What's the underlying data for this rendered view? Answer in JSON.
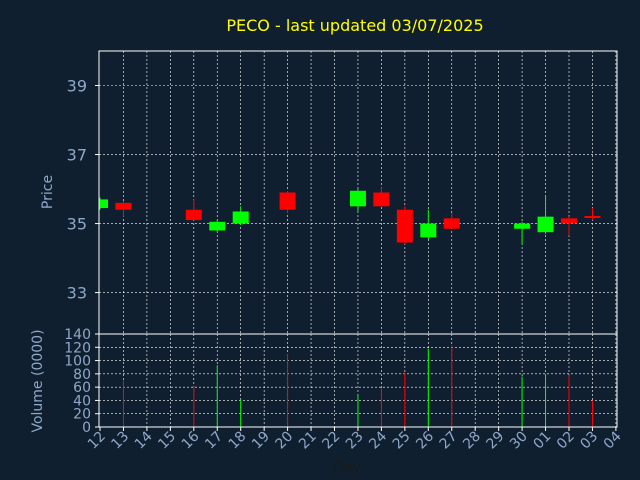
{
  "colors": {
    "background": "#0f1f2f",
    "up": "#00ff00",
    "down": "#ff0000",
    "grid": "#ffffff",
    "frame": "#ffffff",
    "title": "#ffff00",
    "label": "#8fa8c8"
  },
  "chart_data": {
    "type": "candlestick",
    "title": "PECO - last updated 03/07/2025",
    "xlabel": "Day",
    "price_panel": {
      "ylabel": "Price",
      "yticks": [
        "33",
        "35",
        "37",
        "39"
      ],
      "ylim": [
        31.8,
        40.0
      ]
    },
    "volume_panel": {
      "ylabel": "Volume (0000)",
      "yticks": [
        "0",
        "20",
        "40",
        "60",
        "80",
        "100",
        "120",
        "140"
      ],
      "ylim": [
        0,
        140
      ]
    },
    "xticks": [
      "12",
      "13",
      "14",
      "15",
      "16",
      "17",
      "18",
      "19",
      "20",
      "21",
      "22",
      "23",
      "24",
      "25",
      "26",
      "27",
      "28",
      "29",
      "30",
      "01",
      "02",
      "03",
      "04"
    ],
    "grid": true,
    "series": [
      {
        "x": "12",
        "open": 35.45,
        "high": 35.75,
        "low": 35.4,
        "close": 35.7,
        "volume": 0
      },
      {
        "x": "13",
        "open": 35.6,
        "high": 35.65,
        "low": 35.2,
        "close": 35.4,
        "volume": 70
      },
      {
        "x": "16",
        "open": 35.4,
        "high": 35.7,
        "low": 35.1,
        "close": 35.1,
        "volume": 61
      },
      {
        "x": "17",
        "open": 34.8,
        "high": 35.1,
        "low": 34.75,
        "close": 35.05,
        "volume": 93
      },
      {
        "x": "18",
        "open": 35.0,
        "high": 35.5,
        "low": 34.95,
        "close": 35.35,
        "volume": 42
      },
      {
        "x": "20",
        "open": 35.9,
        "high": 35.95,
        "low": 35.3,
        "close": 35.4,
        "volume": 110
      },
      {
        "x": "23",
        "open": 35.5,
        "high": 36.0,
        "low": 35.35,
        "close": 35.95,
        "volume": 47
      },
      {
        "x": "24",
        "open": 35.9,
        "high": 36.05,
        "low": 35.5,
        "close": 35.5,
        "volume": 58
      },
      {
        "x": "25",
        "open": 35.4,
        "high": 35.5,
        "low": 34.4,
        "close": 34.45,
        "volume": 82
      },
      {
        "x": "26",
        "open": 34.6,
        "high": 35.4,
        "low": 34.55,
        "close": 35.0,
        "volume": 118
      },
      {
        "x": "27",
        "open": 35.15,
        "high": 35.3,
        "low": 34.85,
        "close": 34.85,
        "volume": 123
      },
      {
        "x": "30",
        "open": 34.85,
        "high": 35.05,
        "low": 34.4,
        "close": 35.0,
        "volume": 76
      },
      {
        "x": "01",
        "open": 34.75,
        "high": 35.8,
        "low": 34.7,
        "close": 35.2,
        "volume": 80
      },
      {
        "x": "02",
        "open": 35.15,
        "high": 35.2,
        "low": 34.65,
        "close": 35.0,
        "volume": 78
      },
      {
        "x": "03",
        "open": 35.22,
        "high": 35.45,
        "low": 35.1,
        "close": 35.18,
        "volume": 40
      }
    ]
  }
}
